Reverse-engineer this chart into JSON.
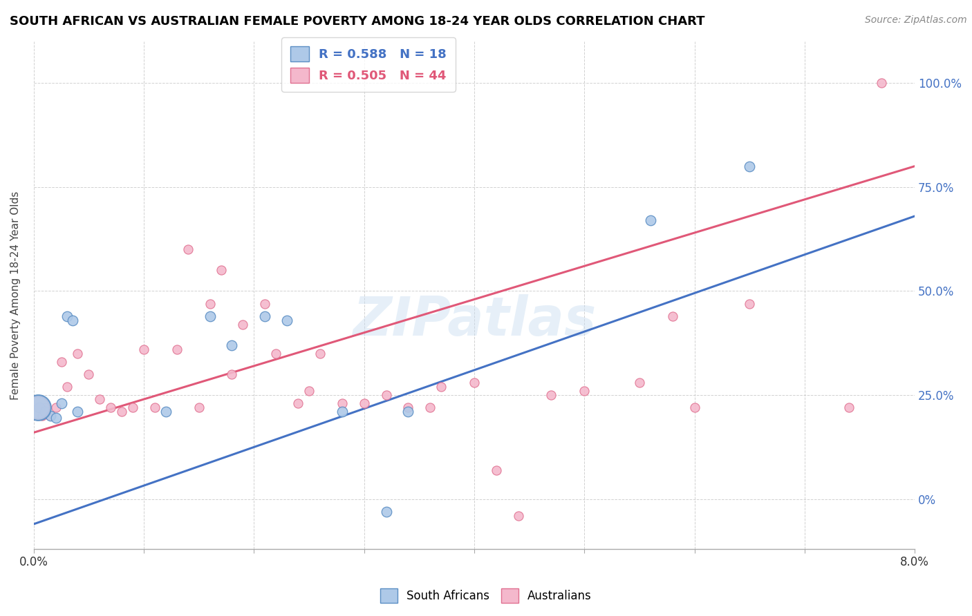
{
  "title": "SOUTH AFRICAN VS AUSTRALIAN FEMALE POVERTY AMONG 18-24 YEAR OLDS CORRELATION CHART",
  "source": "Source: ZipAtlas.com",
  "ylabel": "Female Poverty Among 18-24 Year Olds",
  "xlim": [
    0.0,
    0.08
  ],
  "ylim": [
    -0.12,
    1.1
  ],
  "xticks": [
    0.0,
    0.01,
    0.02,
    0.03,
    0.04,
    0.05,
    0.06,
    0.07,
    0.08
  ],
  "ytick_positions": [
    0.0,
    0.25,
    0.5,
    0.75,
    1.0
  ],
  "ytick_labels": [
    "0%",
    "25.0%",
    "50.0%",
    "75.0%",
    "100.0%"
  ],
  "xtick_labels": [
    "0.0%",
    "",
    "",
    "",
    "",
    "",
    "",
    "",
    "8.0%"
  ],
  "sa_color": "#aec9e8",
  "au_color": "#f4b8cc",
  "sa_edge_color": "#5b8ec4",
  "au_edge_color": "#e07090",
  "sa_line_color": "#4472c4",
  "au_line_color": "#e05878",
  "sa_R": 0.588,
  "sa_N": 18,
  "au_R": 0.505,
  "au_N": 44,
  "watermark": "ZIPatlas",
  "sa_x": [
    0.0005,
    0.001,
    0.0015,
    0.002,
    0.0025,
    0.003,
    0.0035,
    0.004,
    0.012,
    0.016,
    0.018,
    0.021,
    0.023,
    0.028,
    0.032,
    0.034,
    0.056,
    0.065
  ],
  "sa_y": [
    0.22,
    0.21,
    0.2,
    0.195,
    0.23,
    0.44,
    0.43,
    0.21,
    0.21,
    0.44,
    0.37,
    0.44,
    0.43,
    0.21,
    -0.03,
    0.21,
    0.67,
    0.8
  ],
  "au_x": [
    0.0004,
    0.0008,
    0.001,
    0.0015,
    0.002,
    0.0025,
    0.003,
    0.004,
    0.005,
    0.006,
    0.007,
    0.008,
    0.009,
    0.01,
    0.011,
    0.013,
    0.014,
    0.015,
    0.016,
    0.017,
    0.018,
    0.019,
    0.021,
    0.022,
    0.024,
    0.025,
    0.026,
    0.028,
    0.03,
    0.032,
    0.034,
    0.036,
    0.037,
    0.04,
    0.042,
    0.044,
    0.047,
    0.05,
    0.055,
    0.058,
    0.06,
    0.065,
    0.074,
    0.077
  ],
  "au_y": [
    0.22,
    0.2,
    0.22,
    0.2,
    0.22,
    0.33,
    0.27,
    0.35,
    0.3,
    0.24,
    0.22,
    0.21,
    0.22,
    0.36,
    0.22,
    0.36,
    0.6,
    0.22,
    0.47,
    0.55,
    0.3,
    0.42,
    0.47,
    0.35,
    0.23,
    0.26,
    0.35,
    0.23,
    0.23,
    0.25,
    0.22,
    0.22,
    0.27,
    0.28,
    0.07,
    -0.04,
    0.25,
    0.26,
    0.28,
    0.44,
    0.22,
    0.47,
    0.22,
    1.0
  ],
  "sa_trend_x0": 0.0,
  "sa_trend_y0": -0.06,
  "sa_trend_x1": 0.08,
  "sa_trend_y1": 0.68,
  "au_trend_x0": 0.0,
  "au_trend_y0": 0.16,
  "au_trend_x1": 0.08,
  "au_trend_y1": 0.8
}
